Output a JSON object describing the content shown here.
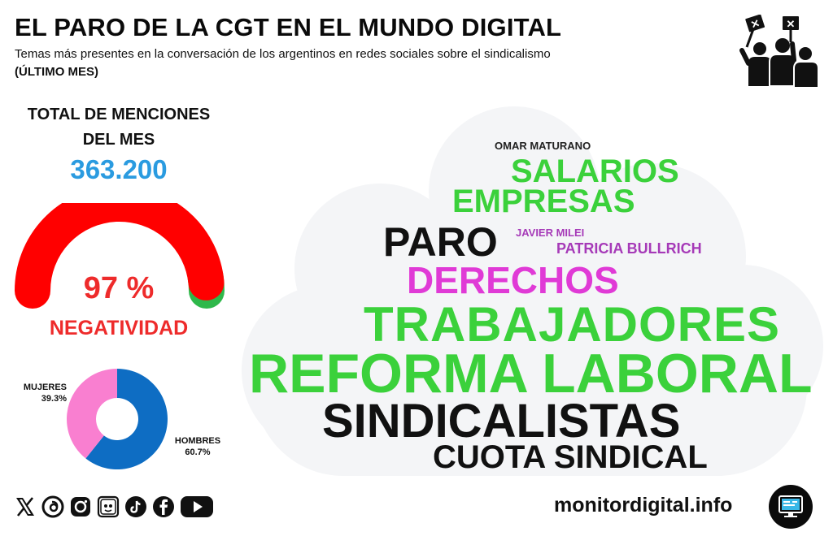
{
  "header": {
    "title": "EL PARO DE LA CGT EN EL MUNDO DIGITAL",
    "subtitle": "Temas más presentes en la conversación de los argentinos en redes sociales sobre el sindicalismo",
    "period": "(ÚLTIMO MES)",
    "icon": "protest-crowd-icon"
  },
  "totals": {
    "label_line1": "TOTAL DE MENCIONES",
    "label_line2": "DEL MES",
    "value": "363.200"
  },
  "sentiment": {
    "percent_text": "97 %",
    "label": "NEGATIVIDAD",
    "negative_fraction": 0.97,
    "negative_color": "#ff0000",
    "positive_color": "#2eb84a"
  },
  "gender": {
    "women_label": "MUJERES",
    "women_value": "39.3%",
    "women_fraction": 0.393,
    "women_color": "#f97fd0",
    "men_label": "HOMBRES",
    "men_value": "60.7%",
    "men_fraction": 0.607,
    "men_color": "#0e6dc3"
  },
  "wordcloud": {
    "words": {
      "omar": "OMAR MATURANO",
      "salarios": "SALARIOS",
      "empresas": "EMPRESAS",
      "paro": "PARO",
      "milei": "JAVIER MILEI",
      "bullrich": "PATRICIA BULLRICH",
      "derechos": "DERECHOS",
      "trabajadores": "TRABAJADORES",
      "reforma": "REFORMA LABORAL",
      "sindicalistas": "SINDICALISTAS",
      "cuota": "CUOTA SINDICAL"
    },
    "colors": {
      "green": "#3bd13b",
      "black": "#111111",
      "purple": "#a63ab8",
      "magenta": "#e03ad6",
      "cloud": "#f4f5f7"
    }
  },
  "footer": {
    "social_icons": [
      "x-icon",
      "threads-icon",
      "instagram-icon",
      "weibo-icon",
      "tiktok-icon",
      "facebook-icon",
      "youtube-icon"
    ],
    "site": "monitordigital.info",
    "badge_icon": "monitor-icon"
  }
}
